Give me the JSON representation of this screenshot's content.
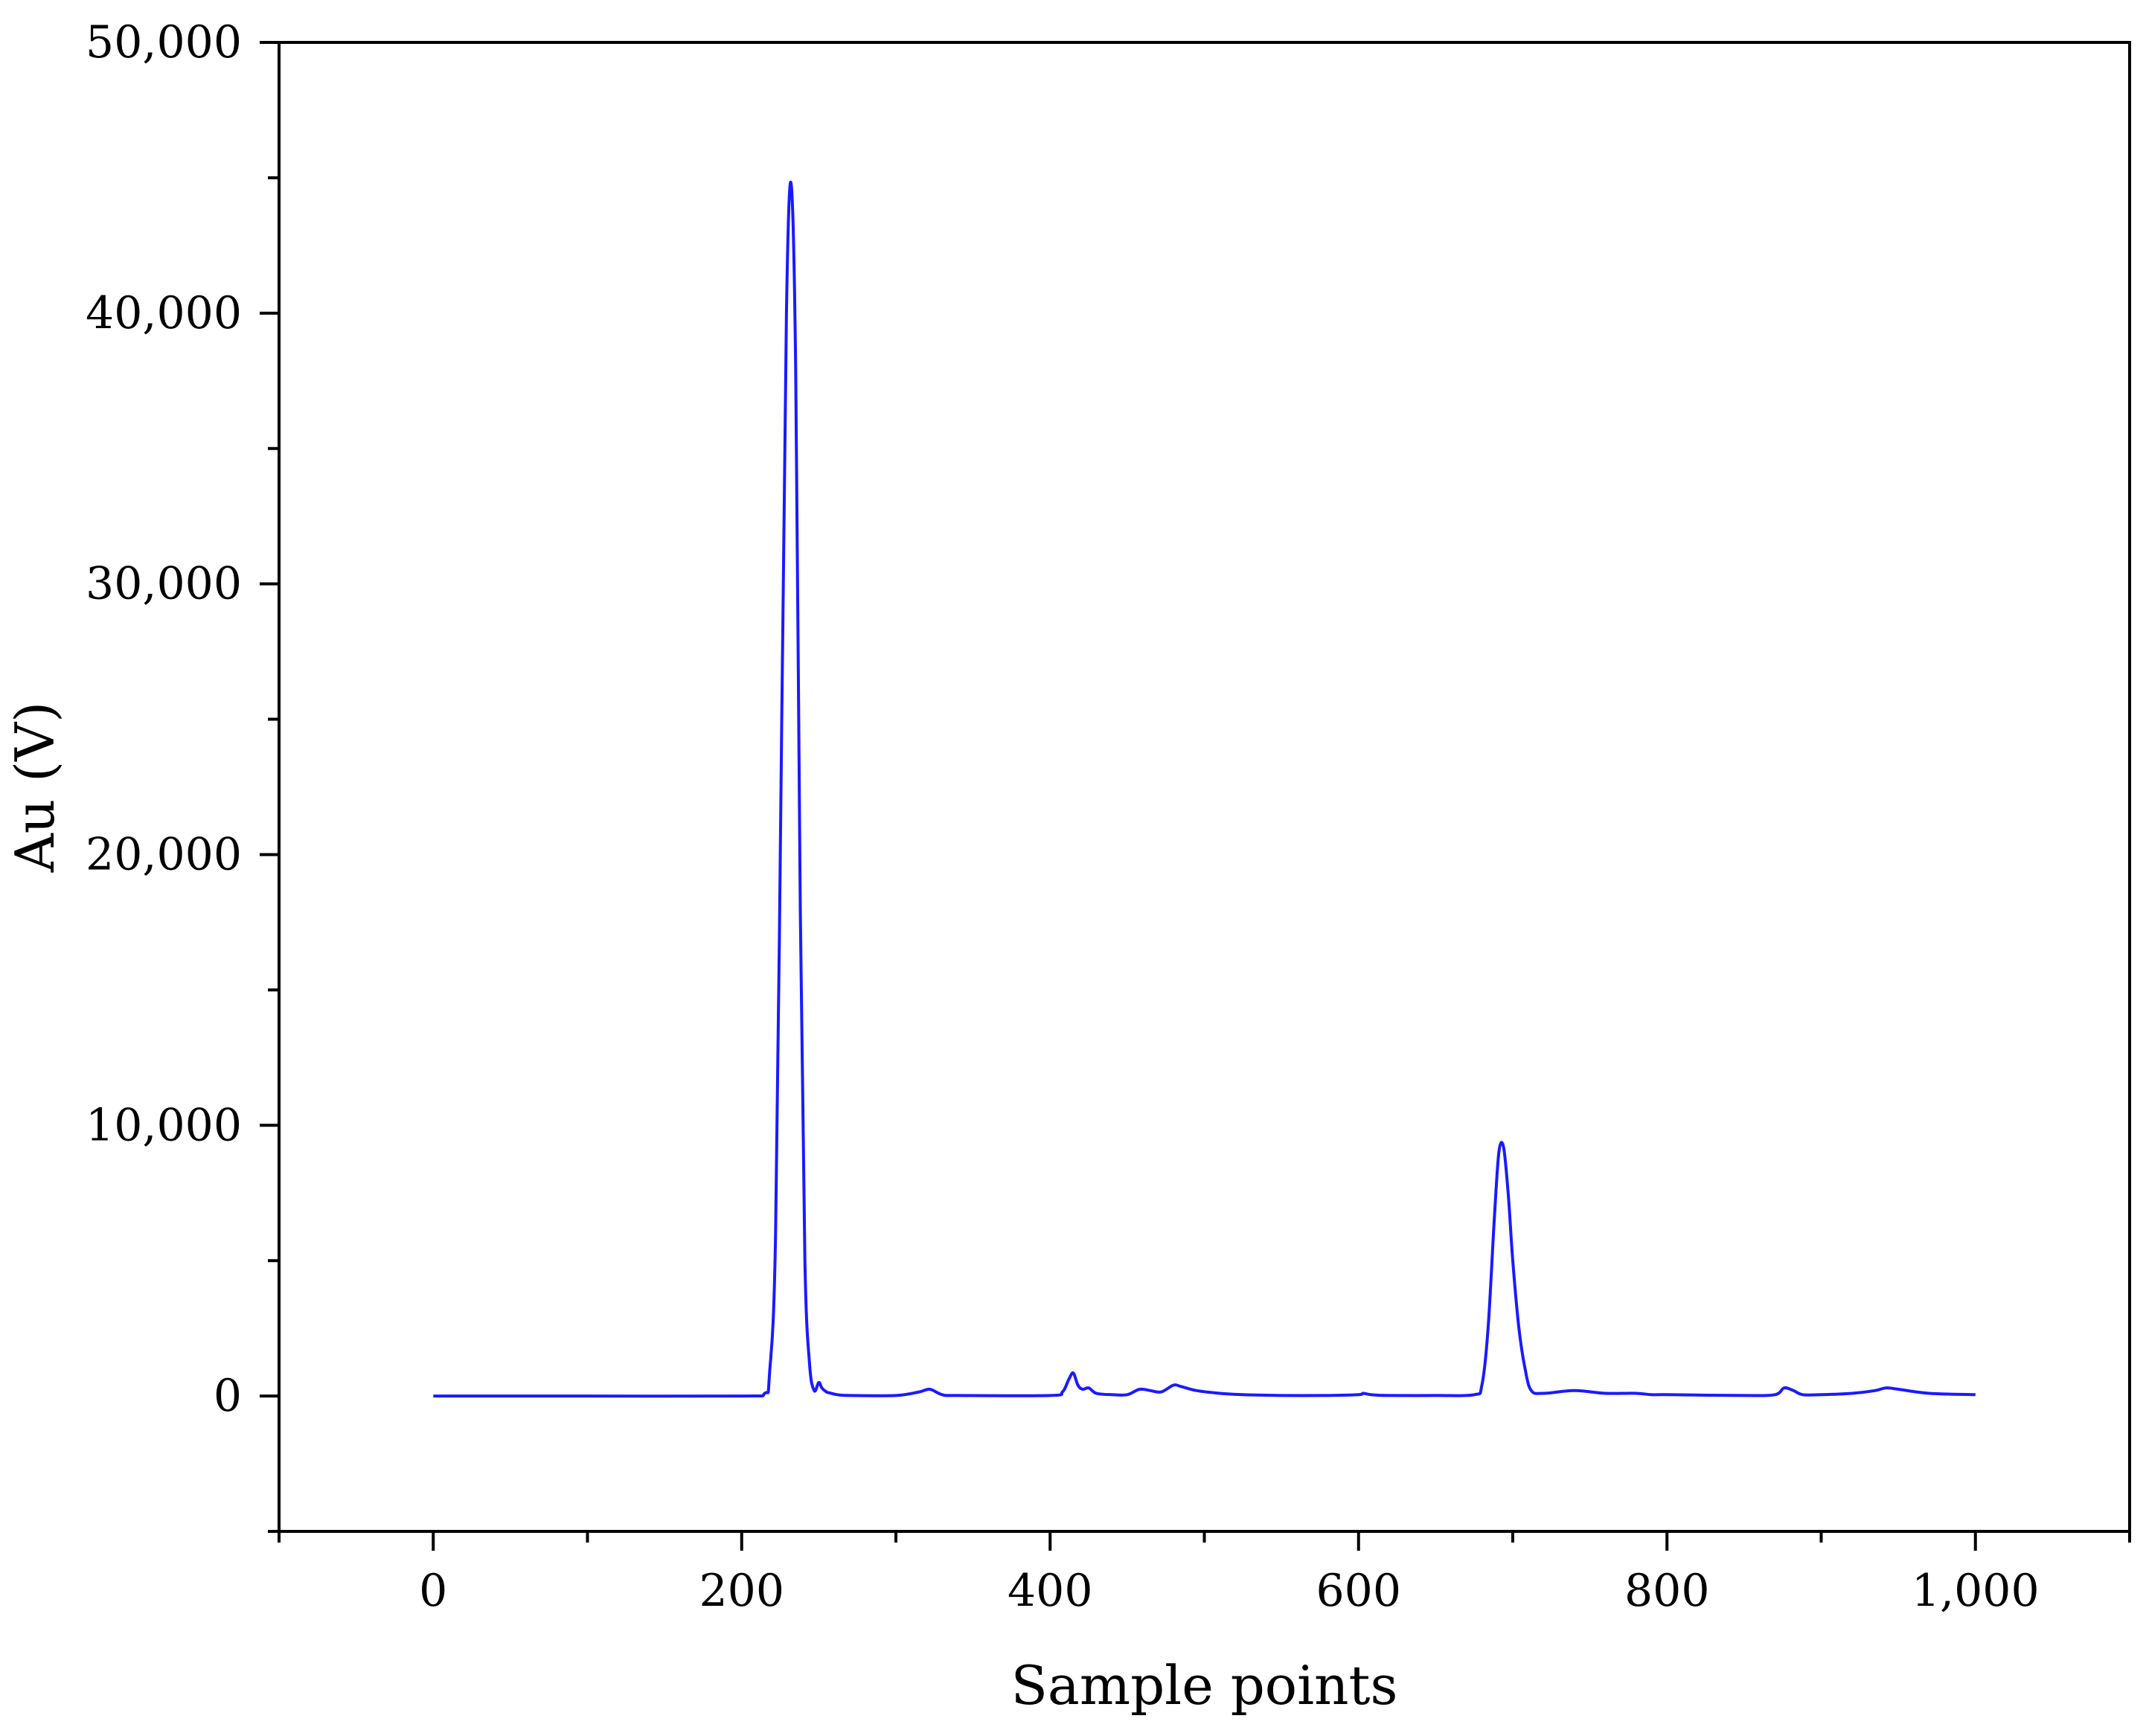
{
  "chart_data": {
    "type": "line",
    "title": "",
    "xlabel": "Sample points",
    "ylabel": "Au (V)",
    "xlim": [
      -100,
      1100
    ],
    "ylim": [
      -5000,
      50000
    ],
    "grid": false,
    "legend": "none",
    "line_color": "#1a1aff",
    "x_ticks": [
      {
        "value": 0,
        "label": "0"
      },
      {
        "value": 200,
        "label": "200"
      },
      {
        "value": 400,
        "label": "400"
      },
      {
        "value": 600,
        "label": "600"
      },
      {
        "value": 800,
        "label": "800"
      },
      {
        "value": 1000,
        "label": "1,000"
      }
    ],
    "x_minor_ticks": [
      -100,
      100,
      300,
      500,
      700,
      900,
      1100
    ],
    "y_ticks": [
      {
        "value": 0,
        "label": "0"
      },
      {
        "value": 10000,
        "label": "10,000"
      },
      {
        "value": 20000,
        "label": "20,000"
      },
      {
        "value": 30000,
        "label": "30,000"
      },
      {
        "value": 40000,
        "label": "40,000"
      },
      {
        "value": 50000,
        "label": "50,000"
      }
    ],
    "y_minor_ticks": [
      -5000,
      5000,
      15000,
      25000,
      35000,
      45000
    ],
    "series": [
      {
        "x": [
          0,
          100,
          200,
          215,
          218,
          222,
          226,
          229,
          232,
          235,
          238,
          241,
          244,
          247,
          250,
          252,
          255,
          258,
          262,
          270,
          300,
          315,
          322,
          330,
          340,
          400,
          408,
          412,
          415,
          418,
          421,
          425,
          430,
          440,
          450,
          458,
          465,
          472,
          480,
          485,
          495,
          510,
          525,
          550,
          580,
          600,
          603,
          608,
          620,
          650,
          675,
          680,
          684,
          688,
          691,
          694,
          697,
          700,
          704,
          708,
          712,
          720,
          740,
          760,
          780,
          790,
          800,
          850,
          870,
          876,
          882,
          888,
          900,
          920,
          935,
          942,
          950,
          970,
          1000
        ],
        "y": [
          0,
          0,
          0,
          100,
          800,
          6000,
          25000,
          40000,
          44800,
          38000,
          18000,
          5000,
          1200,
          200,
          500,
          300,
          150,
          100,
          50,
          20,
          20,
          150,
          250,
          50,
          20,
          20,
          150,
          600,
          850,
          400,
          250,
          300,
          100,
          50,
          50,
          250,
          200,
          150,
          400,
          350,
          200,
          100,
          50,
          20,
          20,
          50,
          100,
          50,
          20,
          20,
          50,
          400,
          2500,
          6500,
          9000,
          9200,
          7500,
          5000,
          2500,
          1000,
          200,
          100,
          200,
          100,
          100,
          50,
          50,
          20,
          50,
          300,
          200,
          50,
          50,
          100,
          200,
          300,
          250,
          100,
          50
        ]
      }
    ]
  }
}
